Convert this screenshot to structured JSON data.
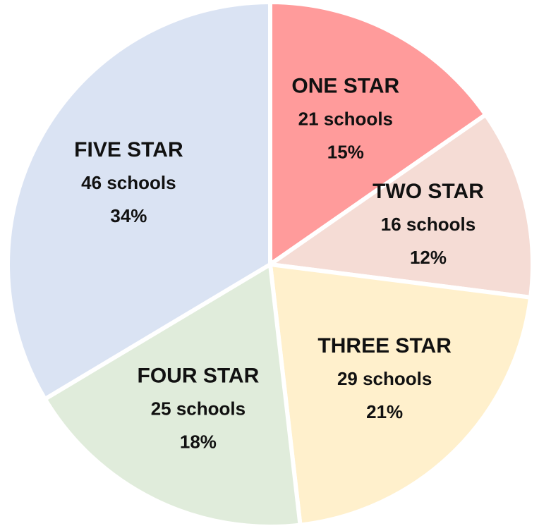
{
  "chart_data": {
    "type": "pie",
    "categories": [
      "ONE STAR",
      "TWO STAR",
      "THREE STAR",
      "FOUR STAR",
      "FIVE STAR"
    ],
    "values": [
      21,
      16,
      29,
      25,
      46
    ],
    "value_labels": [
      "21 schools",
      "16 schools",
      "29 schools",
      "25 schools",
      "46 schools"
    ],
    "percent_labels": [
      "15%",
      "12%",
      "21%",
      "18%",
      "34%"
    ],
    "colors": [
      "#ff9b9b",
      "#f5dcd5",
      "#fff0cc",
      "#e0ecdb",
      "#dae3f3"
    ]
  }
}
